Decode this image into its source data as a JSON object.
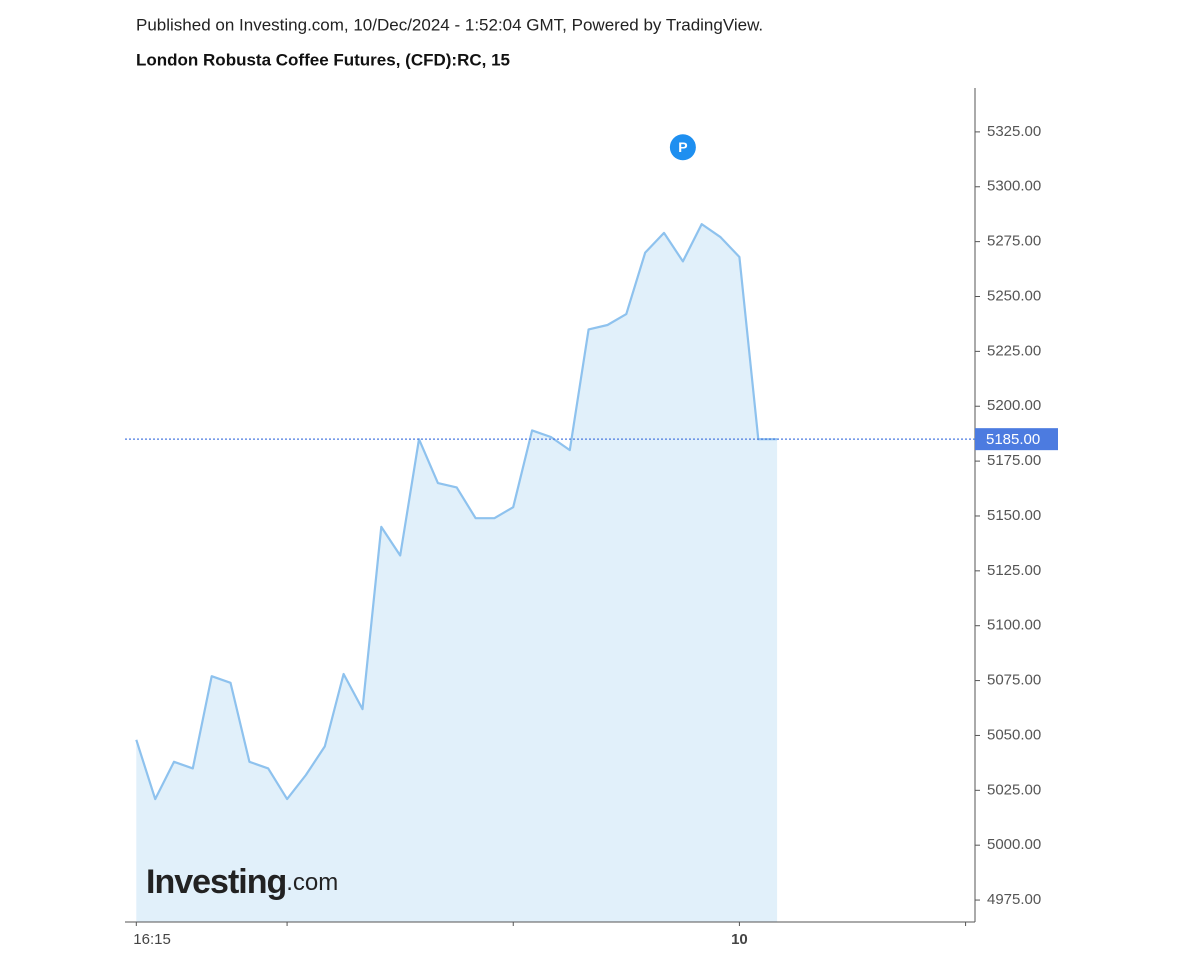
{
  "published": "Published on Investing.com, 10/Dec/2024 - 1:52:04 GMT, Powered by TradingView.",
  "chart_data": {
    "type": "area",
    "title": "London Robusta Coffee Futures, (CFD):RC, 15",
    "values": [
      5048,
      5021,
      5038,
      5035,
      5077,
      5074,
      5038,
      5035,
      5021,
      5032,
      5045,
      5078,
      5062,
      5145,
      5132,
      5185,
      5165,
      5163,
      5149,
      5149,
      5154,
      5189,
      5186,
      5180,
      5235,
      5237,
      5242,
      5270,
      5279,
      5266,
      5283,
      5277,
      5268,
      5185,
      5185
    ],
    "color": "#8ec2ee",
    "fill": "#e1f0fa",
    "xlim": [
      -0.6,
      44.5
    ],
    "xticks": [
      {
        "value": 0,
        "label": "16:15"
      },
      {
        "value": 8,
        "label": null
      },
      {
        "value": 20,
        "label": null
      },
      {
        "value": 32,
        "label": "10"
      },
      {
        "value": 44,
        "label": null
      }
    ],
    "ylim": [
      4965,
      5345
    ],
    "yticks": [
      {
        "value": 4975,
        "label": "4975.00"
      },
      {
        "value": 5000,
        "label": "5000.00"
      },
      {
        "value": 5025,
        "label": "5025.00"
      },
      {
        "value": 5050,
        "label": "5050.00"
      },
      {
        "value": 5075,
        "label": "5075.00"
      },
      {
        "value": 5100,
        "label": "5100.00"
      },
      {
        "value": 5125,
        "label": "5125.00"
      },
      {
        "value": 5150,
        "label": "5150.00"
      },
      {
        "value": 5175,
        "label": "5175.00"
      },
      {
        "value": 5200,
        "label": "5200.00"
      },
      {
        "value": 5225,
        "label": "5225.00"
      },
      {
        "value": 5250,
        "label": "5250.00"
      },
      {
        "value": 5275,
        "label": "5275.00"
      },
      {
        "value": 5300,
        "label": "5300.00"
      },
      {
        "value": 5325,
        "label": "5325.00"
      }
    ],
    "last_price": {
      "value": 5185,
      "label": "5185.00"
    },
    "marker": {
      "label": "P",
      "x": 29,
      "y": 5318
    },
    "logo": "Investing",
    "logo_suffix": ".com"
  }
}
